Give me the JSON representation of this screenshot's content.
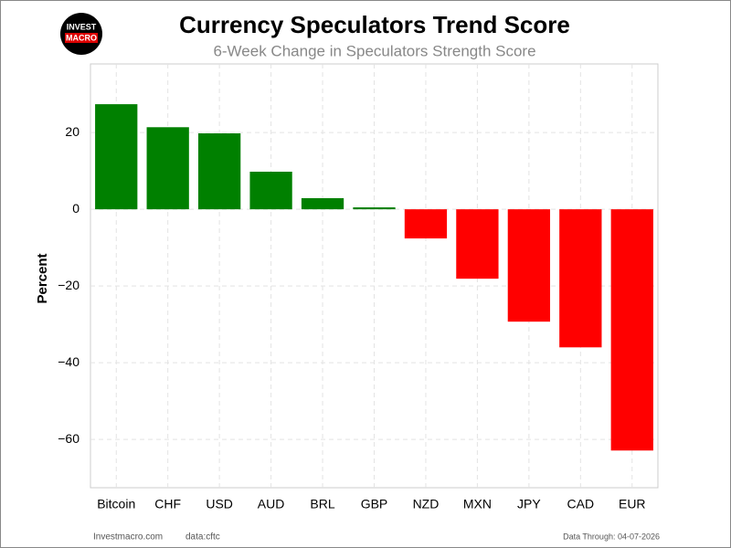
{
  "logo": {
    "line1": "INVEST",
    "line2": "MACRO"
  },
  "chart_data": {
    "type": "bar",
    "title": "Currency Speculators Trend Score",
    "subtitle": "6-Week Change in Speculators Strength Score",
    "y_label": "Percent",
    "categories": [
      "Bitcoin",
      "CHF",
      "USD",
      "AUD",
      "BRL",
      "GBP",
      "NZD",
      "MXN",
      "JPY",
      "CAD",
      "EUR"
    ],
    "values": [
      27.4,
      21.4,
      19.8,
      9.8,
      2.9,
      0.5,
      -7.6,
      -18.1,
      -29.3,
      -36.0,
      -62.9
    ],
    "colors": [
      "#008000",
      "#008000",
      "#008000",
      "#008000",
      "#008000",
      "#008000",
      "#ff0000",
      "#ff0000",
      "#ff0000",
      "#ff0000",
      "#ff0000"
    ],
    "ylim": [
      -72.6,
      37.9
    ],
    "yticks": [
      {
        "value": -60,
        "label": "−60"
      },
      {
        "value": -40,
        "label": "−40"
      },
      {
        "value": -20,
        "label": "−20"
      },
      0,
      20
    ],
    "grid": true
  },
  "footer": {
    "site": "Investmacro.com",
    "source": "data:cftc",
    "date": "Data Through: 04-07-2026"
  }
}
